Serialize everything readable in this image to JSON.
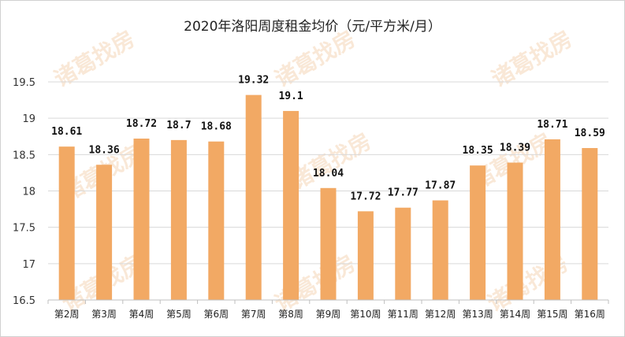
{
  "chart_data": {
    "type": "bar",
    "title": "2020年洛阳周度租金均价（元/平方米/月）",
    "watermark": "诸葛找房",
    "categories": [
      "第2周",
      "第3周",
      "第4周",
      "第5周",
      "第6周",
      "第7周",
      "第8周",
      "第9周",
      "第10周",
      "第11周",
      "第12周",
      "第13周",
      "第14周",
      "第15周",
      "第16周"
    ],
    "values": [
      18.61,
      18.36,
      18.72,
      18.7,
      18.68,
      19.32,
      19.1,
      18.04,
      17.72,
      17.77,
      17.87,
      18.35,
      18.39,
      18.71,
      18.59
    ],
    "value_labels": [
      "18.61",
      "18.36",
      "18.72",
      "18.7",
      "18.68",
      "19.32",
      "19.1",
      "18.04",
      "17.72",
      "17.77",
      "17.87",
      "18.35",
      "18.39",
      "18.71",
      "18.59"
    ],
    "ylim": [
      16.5,
      19.5
    ],
    "yticks": [
      "16.5",
      "17",
      "17.5",
      "18",
      "18.5",
      "19",
      "19.5"
    ],
    "xlabel": "",
    "ylabel": "",
    "grid": true,
    "bar_color": "#f2a964",
    "gridline_color": "#d9d9d9",
    "axis_color": "#bfbfbf"
  }
}
